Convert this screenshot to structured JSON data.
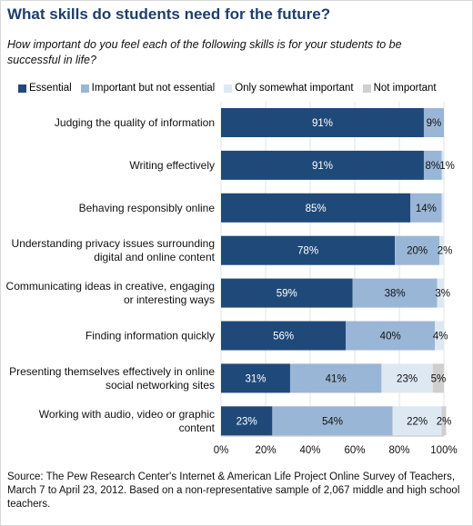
{
  "title": "What skills do students need for the future?",
  "subtitle": "How important do you feel each of the following skills is for your students to be successful in life?",
  "source": "Source: The Pew Research Center's Internet & American Life Project Online Survey of Teachers, March 7 to April 23, 2012.  Based on a non-representative sample of 2,067 middle and high school teachers.",
  "chart_data": {
    "type": "bar",
    "orientation": "horizontal",
    "stacked": true,
    "categories": [
      [
        "Judging the quality of information"
      ],
      [
        "Writing effectively"
      ],
      [
        "Behaving responsibly online"
      ],
      [
        "Understanding privacy issues surrounding",
        "digital and online content"
      ],
      [
        "Communicating ideas in creative, engaging",
        "or interesting ways"
      ],
      [
        "Finding information quickly"
      ],
      [
        "Presenting themselves effectively in online",
        "social networking sites"
      ],
      [
        "Working with audio, video or graphic",
        "content"
      ]
    ],
    "series": [
      {
        "name": "Essential",
        "color": "#1f4979",
        "label_color": "#ffffff",
        "values": [
          91,
          91,
          85,
          78,
          59,
          56,
          31,
          23
        ]
      },
      {
        "name": "Important but not essential",
        "color": "#9ab6d6",
        "label_color": "#111111",
        "values": [
          9,
          8,
          14,
          20,
          38,
          40,
          41,
          54
        ]
      },
      {
        "name": "Only somewhat important",
        "color": "#dde8f3",
        "label_color": "#111111",
        "values": [
          0,
          1,
          1,
          2,
          3,
          4,
          23,
          22
        ]
      },
      {
        "name": "Not important",
        "color": "#cfcfcf",
        "label_color": "#111111",
        "values": [
          0,
          0,
          0,
          0,
          0,
          0,
          5,
          2
        ]
      }
    ],
    "data_labels": [
      [
        "91%",
        "9%",
        null,
        null
      ],
      [
        "91%",
        "8%",
        "1%",
        null
      ],
      [
        "85%",
        "14%",
        null,
        null
      ],
      [
        "78%",
        "20%",
        "2%",
        null
      ],
      [
        "59%",
        "38%",
        "3%",
        null
      ],
      [
        "56%",
        "40%",
        "4%",
        null
      ],
      [
        "31%",
        "41%",
        "23%",
        "5%"
      ],
      [
        "23%",
        "54%",
        "22%",
        "2%"
      ]
    ],
    "xlim": [
      0,
      100
    ],
    "xticks": [
      0,
      20,
      40,
      60,
      80,
      100
    ],
    "xtick_labels": [
      "0%",
      "20%",
      "40%",
      "60%",
      "80%",
      "100%"
    ],
    "grid": true,
    "legend_position": "top"
  }
}
